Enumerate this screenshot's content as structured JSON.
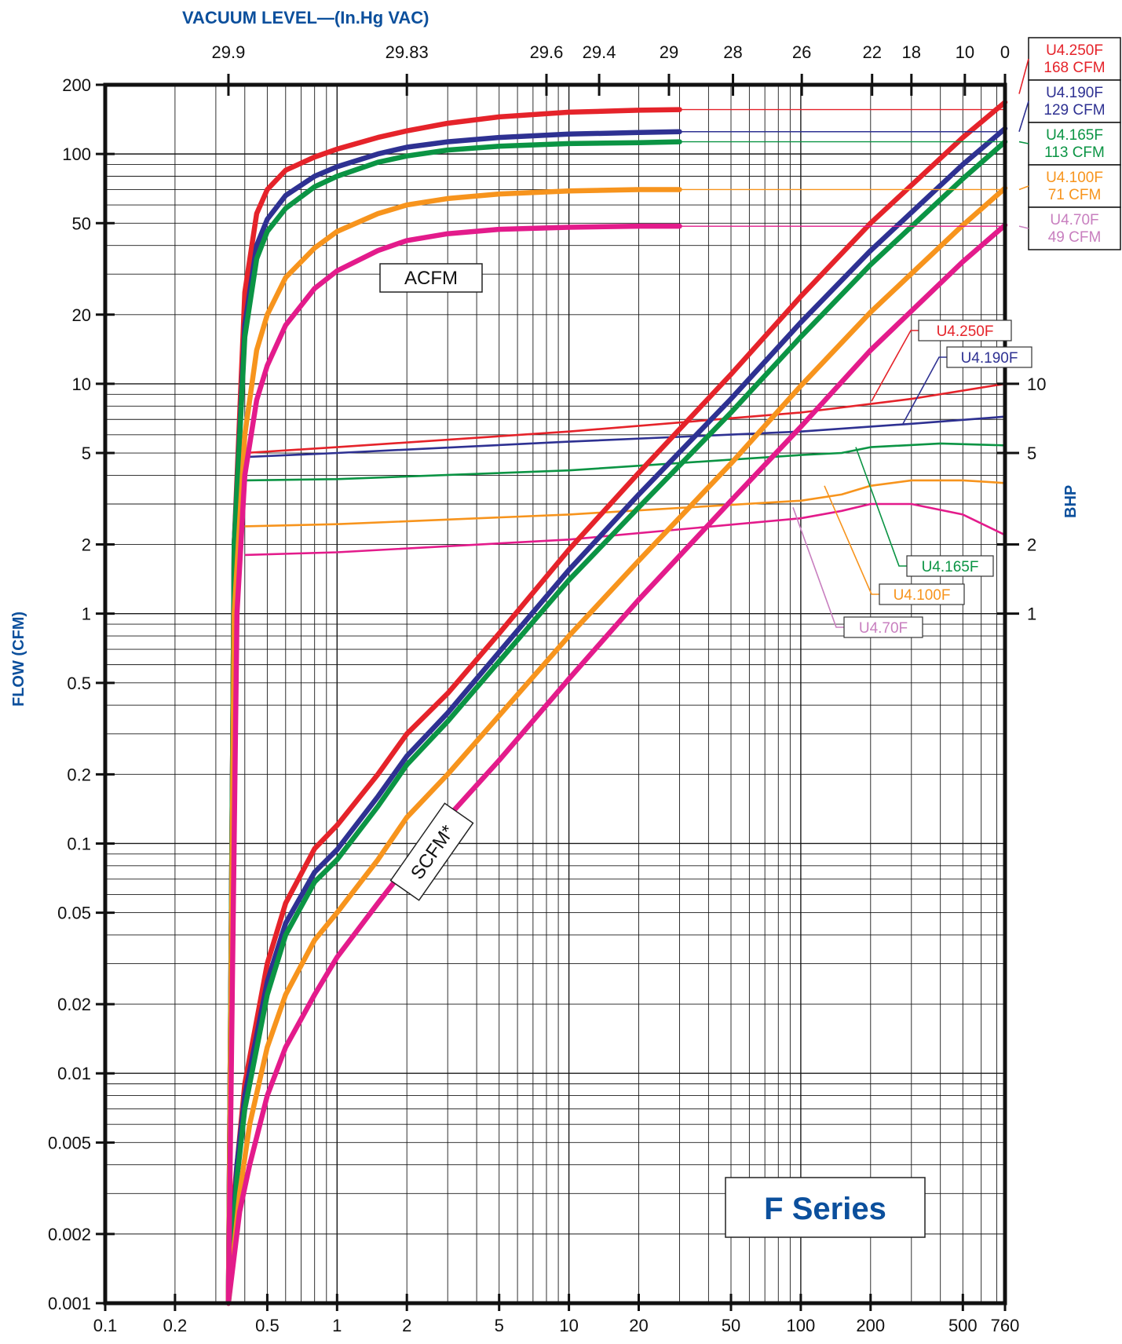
{
  "chart_data": {
    "type": "line",
    "series_title": "F Series",
    "x_axis": {
      "label": "",
      "scale": "log",
      "range": [
        0.1,
        760
      ],
      "ticks": [
        0.1,
        0.2,
        0.5,
        1,
        2,
        5,
        10,
        20,
        50,
        100,
        200,
        500,
        760
      ],
      "tick_labels": [
        "0.1",
        "0.2",
        "0.5",
        "1",
        "2",
        "5",
        "10",
        "20",
        "50",
        "100",
        "200",
        "500",
        "760"
      ]
    },
    "top_axis": {
      "label": "VACUUM LEVEL—(In.Hg VAC)",
      "ticks": [
        {
          "label": "29.9",
          "at": 0.34
        },
        {
          "label": "29.83",
          "at": 2.0
        },
        {
          "label": "29.6",
          "at": 8.0
        },
        {
          "label": "29.4",
          "at": 13.5
        },
        {
          "label": "29",
          "at": 27.0
        },
        {
          "label": "28",
          "at": 51.0
        },
        {
          "label": "26",
          "at": 101.0
        },
        {
          "label": "22",
          "at": 203.0
        },
        {
          "label": "18",
          "at": 300.0
        },
        {
          "label": "10",
          "at": 510.0
        },
        {
          "label": "0",
          "at": 760.0
        }
      ]
    },
    "y_axis": {
      "label": "FLOW  (CFM)",
      "scale": "log",
      "range": [
        0.001,
        200
      ],
      "ticks": [
        0.001,
        0.002,
        0.005,
        0.01,
        0.02,
        0.05,
        0.1,
        0.2,
        0.5,
        1,
        2,
        5,
        10,
        20,
        50,
        100,
        200
      ],
      "tick_labels": [
        "0.001",
        "0.002",
        "0.005",
        "0.01",
        "0.02",
        "0.05",
        "0.1",
        "0.2",
        "0.5",
        "1",
        "2",
        "5",
        "10",
        "20",
        "50",
        "100",
        "200"
      ]
    },
    "y2_axis": {
      "label": "BHP",
      "ticks": [
        1,
        2,
        5,
        10
      ],
      "tick_labels": [
        "1",
        "2",
        "5",
        "10"
      ]
    },
    "grid": true,
    "annotations": [
      "ACFM",
      "SCFM*"
    ],
    "acfm_series": [
      {
        "name": "U4.250F",
        "rated": "168 CFM",
        "color": "#e5232a",
        "x": [
          0.34,
          0.36,
          0.4,
          0.45,
          0.5,
          0.6,
          0.8,
          1,
          1.5,
          2,
          3,
          5,
          10,
          20,
          30
        ],
        "y": [
          0.001,
          2,
          25,
          55,
          70,
          85,
          97,
          105,
          118,
          126,
          136,
          145,
          152,
          155,
          156
        ]
      },
      {
        "name": "U4.190F",
        "rated": "129 CFM",
        "color": "#2e3192",
        "x": [
          0.34,
          0.36,
          0.4,
          0.45,
          0.5,
          0.6,
          0.8,
          1,
          1.5,
          2,
          3,
          5,
          10,
          20,
          30
        ],
        "y": [
          0.001,
          2,
          18,
          40,
          52,
          66,
          80,
          88,
          100,
          107,
          113,
          118,
          122,
          124,
          125
        ]
      },
      {
        "name": "U4.165F",
        "rated": "113 CFM",
        "color": "#0b9444",
        "x": [
          0.34,
          0.36,
          0.4,
          0.45,
          0.5,
          0.6,
          0.8,
          1,
          1.5,
          2,
          3,
          5,
          10,
          20,
          30
        ],
        "y": [
          0.001,
          2,
          16,
          35,
          46,
          58,
          72,
          80,
          92,
          98,
          104,
          108,
          111,
          112,
          113
        ]
      },
      {
        "name": "U4.100F",
        "rated": "71 CFM",
        "color": "#f7941d",
        "x": [
          0.34,
          0.36,
          0.4,
          0.45,
          0.5,
          0.6,
          0.8,
          1,
          1.5,
          2,
          3,
          5,
          10,
          20,
          30
        ],
        "y": [
          0.001,
          1,
          6,
          14,
          20,
          29,
          39,
          46,
          55,
          60,
          64,
          67,
          69,
          70,
          70
        ]
      },
      {
        "name": "U4.70F",
        "rated": "49 CFM",
        "color": "#e31b8b",
        "x": [
          0.34,
          0.37,
          0.4,
          0.45,
          0.5,
          0.6,
          0.8,
          1,
          1.5,
          2,
          3,
          5,
          10,
          20,
          30
        ],
        "y": [
          0.001,
          1,
          4,
          8.5,
          12,
          18,
          26,
          31,
          38,
          42,
          45,
          47,
          48,
          48.5,
          48.5
        ]
      }
    ],
    "scfm_series": [
      {
        "name": "U4.250F",
        "color": "#e5232a",
        "x": [
          0.34,
          0.36,
          0.4,
          0.5,
          0.6,
          0.8,
          1,
          1.5,
          2,
          3,
          5,
          10,
          20,
          50,
          100,
          200,
          500,
          760
        ],
        "y": [
          0.001,
          0.003,
          0.009,
          0.03,
          0.055,
          0.095,
          0.12,
          0.2,
          0.3,
          0.45,
          0.82,
          1.9,
          4.1,
          11,
          24,
          50,
          118,
          168
        ]
      },
      {
        "name": "U4.190F",
        "color": "#2e3192",
        "x": [
          0.34,
          0.37,
          0.4,
          0.5,
          0.6,
          0.8,
          1,
          1.5,
          2,
          3,
          5,
          10,
          20,
          50,
          100,
          200,
          500,
          760
        ],
        "y": [
          0.001,
          0.004,
          0.008,
          0.025,
          0.045,
          0.075,
          0.094,
          0.16,
          0.24,
          0.37,
          0.68,
          1.55,
          3.3,
          8.6,
          18.5,
          38,
          90,
          129
        ]
      },
      {
        "name": "U4.165F",
        "color": "#0b9444",
        "x": [
          0.34,
          0.37,
          0.4,
          0.5,
          0.6,
          0.8,
          1,
          1.5,
          2,
          3,
          5,
          10,
          20,
          50,
          100,
          200,
          500,
          760
        ],
        "y": [
          0.001,
          0.0035,
          0.007,
          0.022,
          0.04,
          0.068,
          0.085,
          0.145,
          0.22,
          0.34,
          0.62,
          1.4,
          2.9,
          7.5,
          16,
          33,
          78,
          113
        ]
      },
      {
        "name": "U4.100F",
        "color": "#f7941d",
        "x": [
          0.34,
          0.38,
          0.42,
          0.5,
          0.6,
          0.8,
          1,
          1.5,
          2,
          3,
          5,
          10,
          20,
          50,
          100,
          200,
          500,
          760
        ],
        "y": [
          0.001,
          0.003,
          0.006,
          0.013,
          0.022,
          0.038,
          0.05,
          0.085,
          0.13,
          0.2,
          0.36,
          0.8,
          1.7,
          4.5,
          9.8,
          20.5,
          49,
          71
        ]
      },
      {
        "name": "U4.70F",
        "color": "#e31b8b",
        "x": [
          0.34,
          0.38,
          0.42,
          0.5,
          0.6,
          0.8,
          1,
          1.5,
          2,
          3,
          5,
          10,
          20,
          50,
          100,
          200,
          500,
          760
        ],
        "y": [
          0.001,
          0.0025,
          0.004,
          0.008,
          0.013,
          0.022,
          0.032,
          0.055,
          0.08,
          0.13,
          0.23,
          0.52,
          1.15,
          3.1,
          6.5,
          14,
          34,
          49
        ]
      }
    ],
    "bhp_series": [
      {
        "name": "U4.250F",
        "color": "#e5232a",
        "x": [
          0.4,
          1,
          10,
          100,
          300,
          760
        ],
        "y": [
          5.0,
          5.3,
          6.2,
          7.5,
          8.6,
          10.0
        ]
      },
      {
        "name": "U4.190F",
        "color": "#2e3192",
        "x": [
          0.4,
          1,
          10,
          100,
          300,
          760
        ],
        "y": [
          4.8,
          5.0,
          5.6,
          6.2,
          6.7,
          7.2
        ]
      },
      {
        "name": "U4.165F",
        "color": "#0b9444",
        "x": [
          0.4,
          1,
          10,
          100,
          150,
          200,
          400,
          760
        ],
        "y": [
          3.8,
          3.85,
          4.2,
          4.9,
          5.0,
          5.3,
          5.5,
          5.4
        ]
      },
      {
        "name": "U4.100F",
        "color": "#f7941d",
        "x": [
          0.4,
          1,
          10,
          100,
          150,
          200,
          300,
          500,
          760
        ],
        "y": [
          2.4,
          2.45,
          2.7,
          3.1,
          3.3,
          3.6,
          3.8,
          3.8,
          3.7
        ]
      },
      {
        "name": "U4.70F",
        "color": "#e31b8b",
        "x": [
          0.4,
          1,
          10,
          100,
          150,
          200,
          300,
          500,
          760
        ],
        "y": [
          1.8,
          1.85,
          2.1,
          2.6,
          2.8,
          3.0,
          3.0,
          2.7,
          2.2
        ]
      }
    ],
    "legend_right": [
      {
        "model": "U4.250F",
        "cfm": "168 CFM",
        "color": "#e5232a"
      },
      {
        "model": "U4.190F",
        "cfm": "129 CFM",
        "color": "#2e3192"
      },
      {
        "model": "U4.165F",
        "cfm": "113 CFM",
        "color": "#0b9444"
      },
      {
        "model": "U4.100F",
        "cfm": "71 CFM",
        "color": "#f7941d"
      },
      {
        "model": "U4.70F",
        "cfm": "49 CFM",
        "color": "#c87fbf"
      }
    ],
    "bhp_callouts": [
      {
        "label": "U4.250F",
        "color": "#e5232a"
      },
      {
        "label": "U4.190F",
        "color": "#2e3192"
      },
      {
        "label": "U4.165F",
        "color": "#0b9444"
      },
      {
        "label": "U4.100F",
        "color": "#f7941d"
      },
      {
        "label": "U4.70F",
        "color": "#c87fbf"
      }
    ]
  }
}
